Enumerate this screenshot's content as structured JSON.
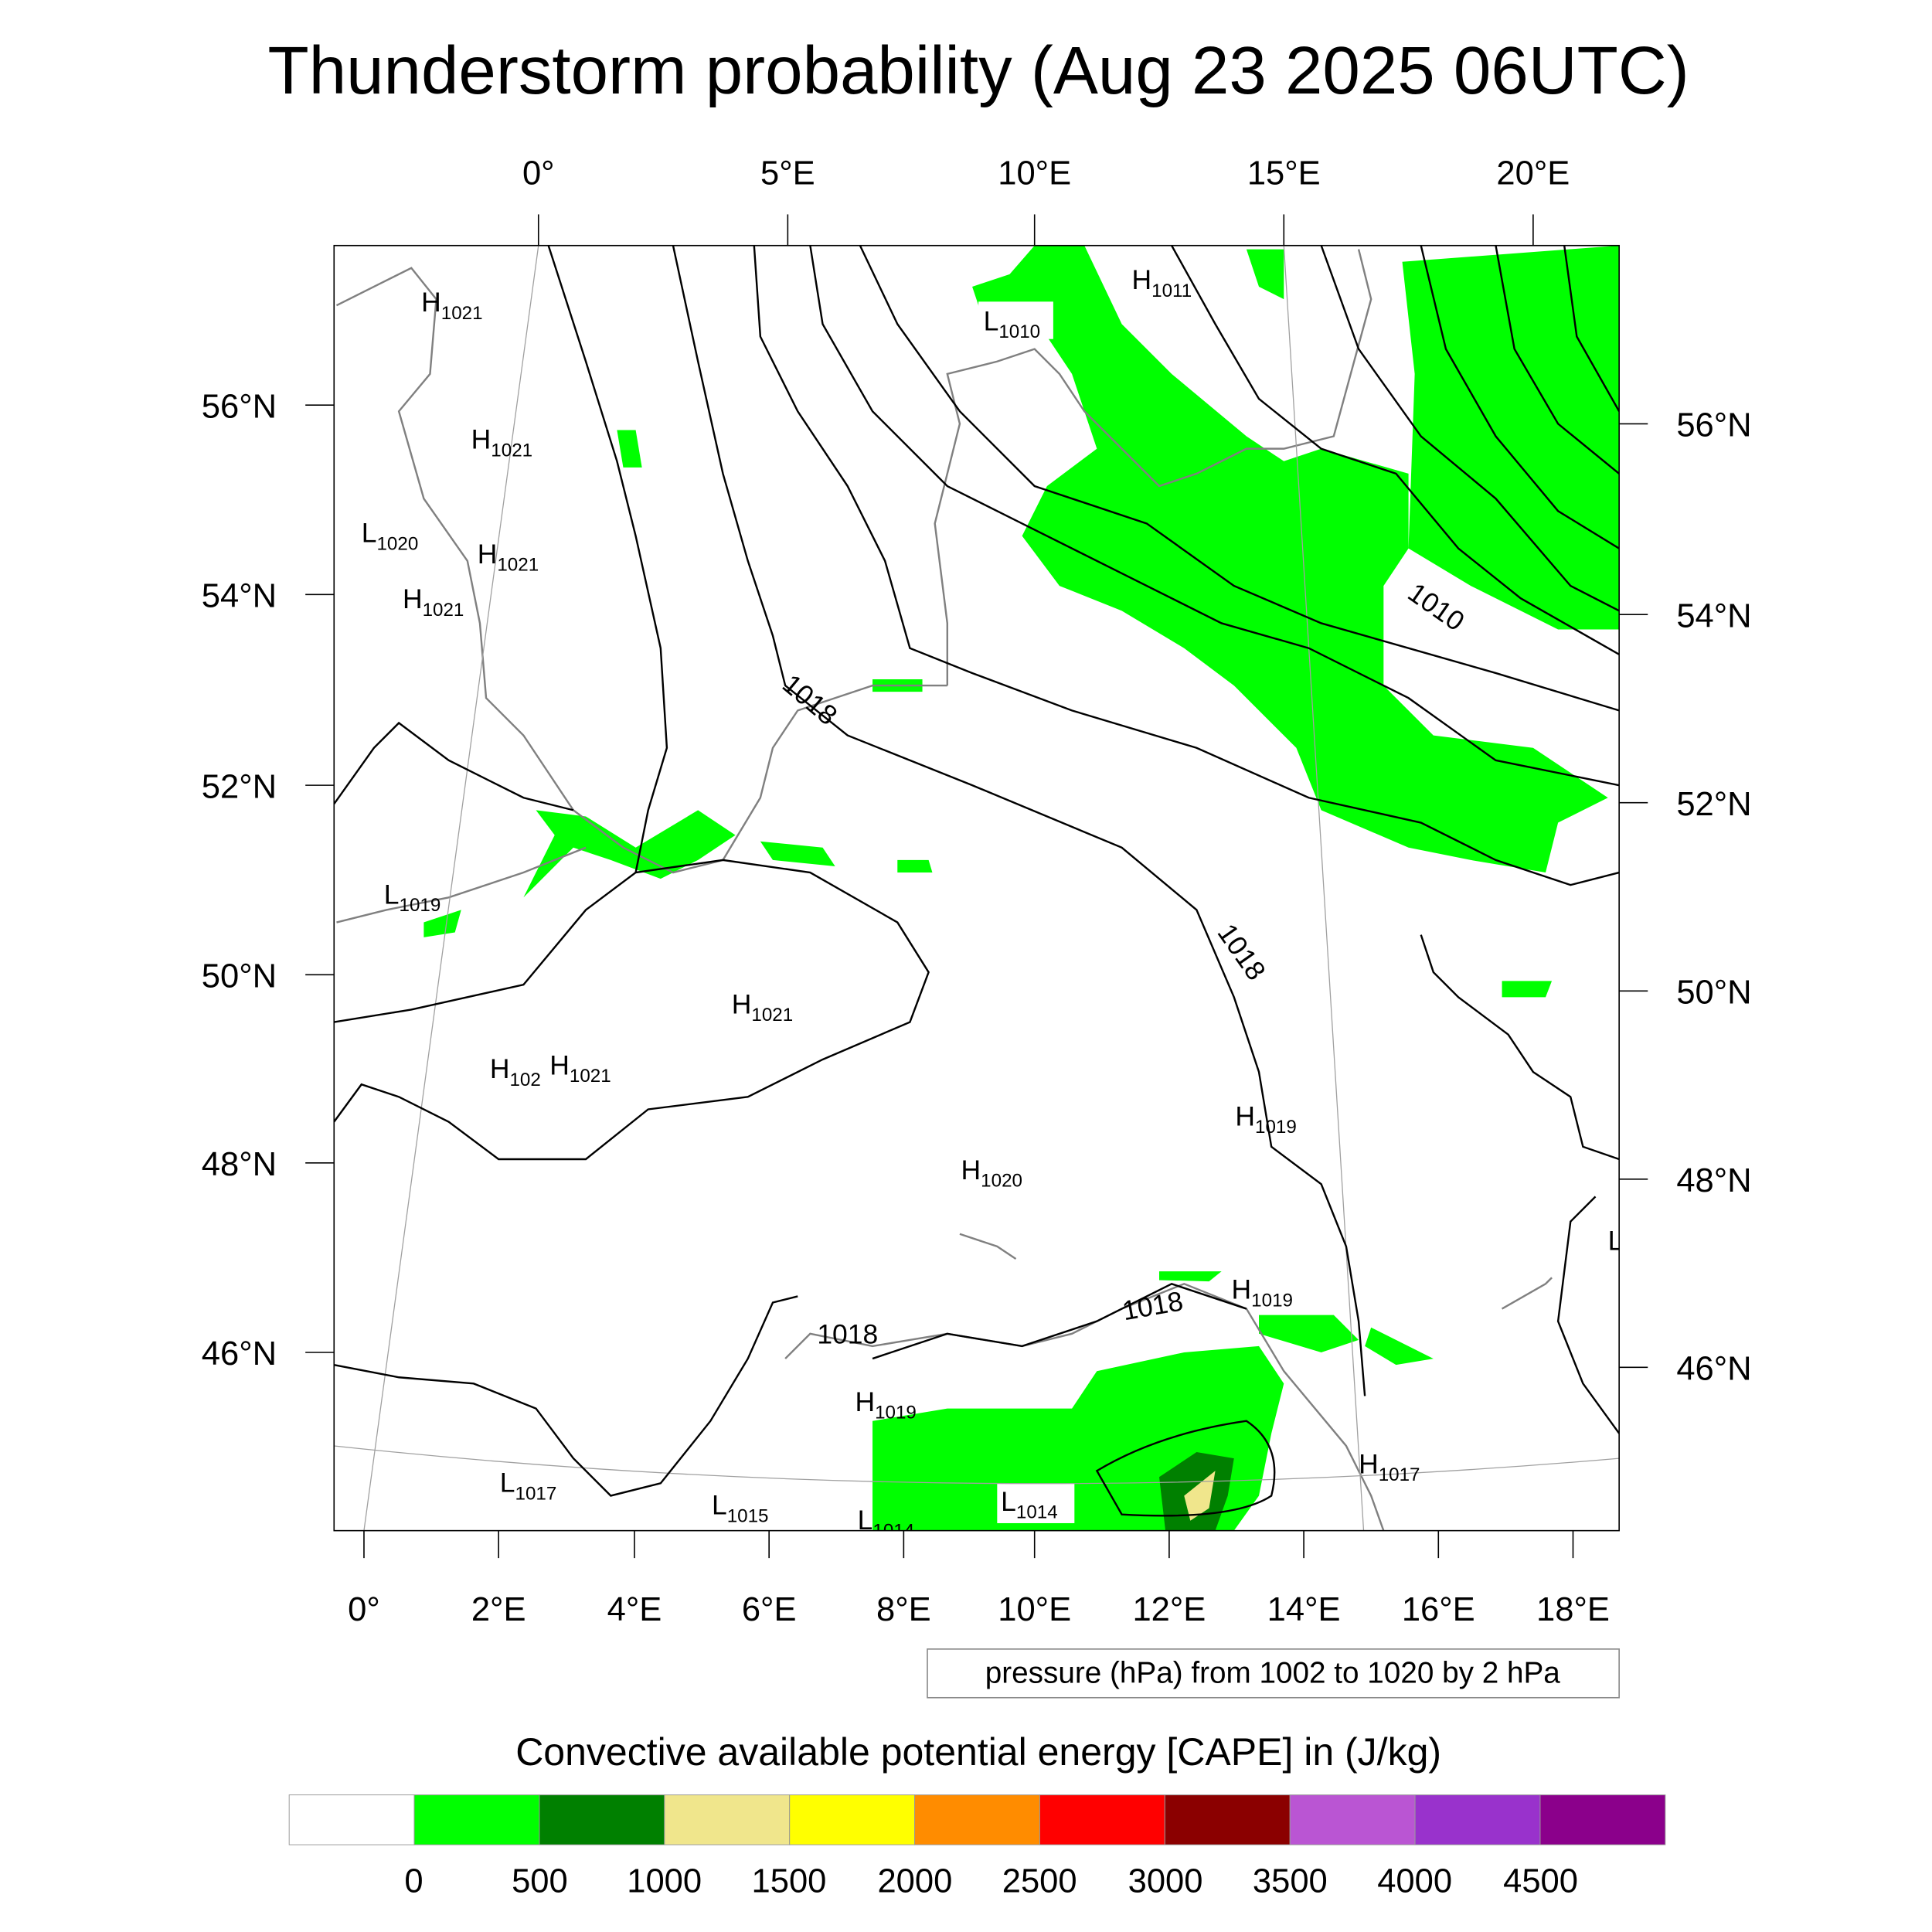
{
  "title": "Thunderstorm probability (Aug 23 2025 06UTC)",
  "axes": {
    "top_lon": [
      "0°",
      "5°E",
      "10°E",
      "15°E",
      "20°E"
    ],
    "bottom_lon": [
      "0°",
      "2°E",
      "4°E",
      "6°E",
      "8°E",
      "10°E",
      "12°E",
      "14°E",
      "16°E",
      "18°E"
    ],
    "left_lat": [
      "56°N",
      "54°N",
      "52°N",
      "50°N",
      "48°N",
      "46°N"
    ],
    "right_lat": [
      "56°N",
      "54°N",
      "52°N",
      "50°N",
      "48°N",
      "46°N"
    ]
  },
  "pressure_centers": [
    {
      "type": "H",
      "value": "1021"
    },
    {
      "type": "H",
      "value": "1021"
    },
    {
      "type": "L",
      "value": "1020"
    },
    {
      "type": "H",
      "value": "1021"
    },
    {
      "type": "H",
      "value": "1021"
    },
    {
      "type": "L",
      "value": "1019"
    },
    {
      "type": "H",
      "value": "1021"
    },
    {
      "type": "H",
      "value": "102"
    },
    {
      "type": "H",
      "value": "1021"
    },
    {
      "type": "H",
      "value": "1011"
    },
    {
      "type": "L",
      "value": "1010"
    },
    {
      "type": "H",
      "value": "1019"
    },
    {
      "type": "H",
      "value": "1020"
    },
    {
      "type": "H",
      "value": "1019"
    },
    {
      "type": "H",
      "value": "1019"
    },
    {
      "type": "H",
      "value": "1017"
    },
    {
      "type": "L",
      "value": "1017"
    },
    {
      "type": "L",
      "value": "1015"
    },
    {
      "type": "L",
      "value": "1014"
    },
    {
      "type": "L",
      "value": "1014"
    },
    {
      "type": "L",
      "value": ""
    }
  ],
  "contour_labels": [
    "1010",
    "1018",
    "1018",
    "1018",
    "1018"
  ],
  "info_box": "pressure (hPa) from 1002 to 1020 by 2 hPa",
  "colorbar": {
    "title": "Convective available potential energy [CAPE] in (J/kg)",
    "colors": [
      "#ffffff",
      "#00ff00",
      "#008000",
      "#f0e68c",
      "#ffff00",
      "#ff8c00",
      "#ff0000",
      "#8b0000",
      "#ba55d3",
      "#9932cc",
      "#8b008b"
    ],
    "labels": [
      "0",
      "500",
      "1000",
      "1500",
      "2000",
      "2500",
      "3000",
      "3500",
      "4000",
      "4500"
    ]
  }
}
